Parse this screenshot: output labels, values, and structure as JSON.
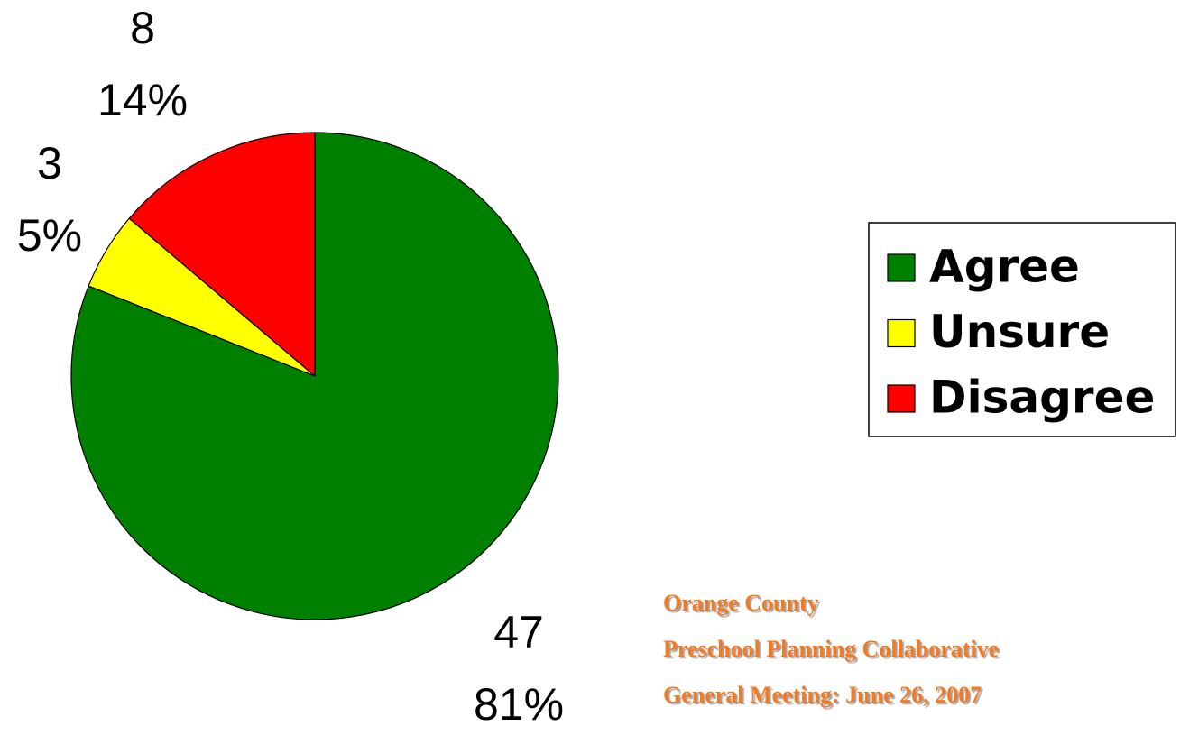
{
  "chart_data": {
    "type": "pie",
    "categories": [
      "Agree",
      "Unsure",
      "Disagree"
    ],
    "values": [
      47,
      3,
      8
    ],
    "percent_labels": [
      "81%",
      "5%",
      "14%"
    ],
    "colors": [
      "#008000",
      "#ffff00",
      "#ff0000"
    ],
    "legend": "right",
    "annotations": [
      "Orange County",
      "Preschool Planning Collaborative",
      "General Meeting:  June 26, 2007"
    ]
  }
}
